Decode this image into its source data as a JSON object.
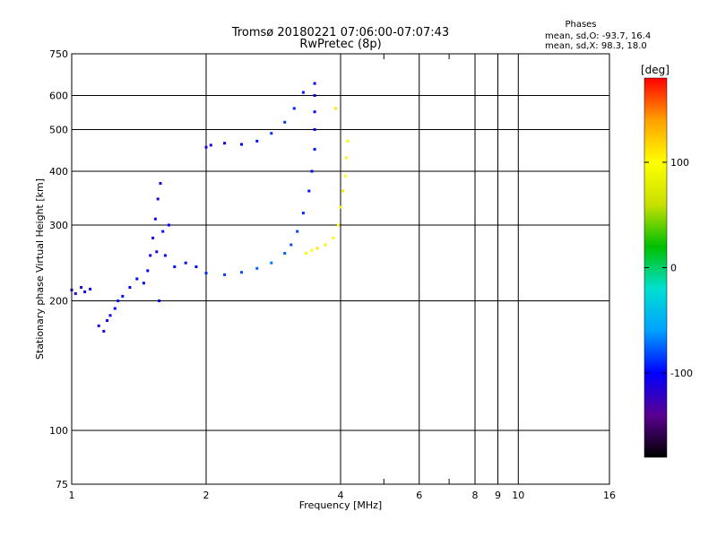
{
  "title": "Tromsø 20180221 07:06:00-07:07:43",
  "subtitle": "RwPretec (8p)",
  "stats": {
    "heading": "Phases",
    "line_o": "mean, sd,O: -93.7, 16.4",
    "line_x": "mean, sd,X:  98.3, 18.0"
  },
  "colorbar": {
    "unit_label": "[deg]",
    "min": -180,
    "max": 180,
    "ticks": [
      {
        "value": 100,
        "label": "100"
      },
      {
        "value": 0,
        "label": "0"
      },
      {
        "value": -100,
        "label": "-100"
      }
    ],
    "stops": [
      "#000000",
      "#5a0090",
      "#0000ff",
      "#00a0ff",
      "#00e0d0",
      "#00c000",
      "#c8e000",
      "#ffff00",
      "#ffa000",
      "#ff0000"
    ]
  },
  "chart_data": {
    "type": "scatter",
    "title": "Tromsø 20180221 07:06:00-07:07:43",
    "subtitle": "RwPretec (8p)",
    "xlabel": "Frequency [MHz]",
    "ylabel": "Stationary phase Virtual Height [km]",
    "xscale": "log",
    "yscale": "log",
    "xlim": [
      1,
      16
    ],
    "ylim": [
      75,
      750
    ],
    "xticks": [
      1,
      2,
      4,
      6,
      8,
      9,
      10,
      16
    ],
    "xtick_labels": [
      "1",
      "2",
      "4",
      "6",
      "8",
      "9",
      "10",
      "16"
    ],
    "x_minor": [
      5,
      7
    ],
    "yticks": [
      75,
      100,
      200,
      300,
      400,
      500,
      600,
      750
    ],
    "ytick_labels": [
      "75",
      "100",
      "200",
      "300",
      "400",
      "500",
      "600",
      "750"
    ],
    "grid": true,
    "color_dimension": "phase [deg]",
    "series": [
      {
        "name": "O",
        "points": [
          [
            1.0,
            212,
            -110
          ],
          [
            1.02,
            208,
            -112
          ],
          [
            1.05,
            215,
            -105
          ],
          [
            1.07,
            210,
            -108
          ],
          [
            1.1,
            213,
            -100
          ],
          [
            1.15,
            175,
            -115
          ],
          [
            1.18,
            170,
            -112
          ],
          [
            1.2,
            180,
            -110
          ],
          [
            1.22,
            185,
            -105
          ],
          [
            1.25,
            192,
            -100
          ],
          [
            1.27,
            200,
            -95
          ],
          [
            1.3,
            205,
            -98
          ],
          [
            1.35,
            215,
            -100
          ],
          [
            1.4,
            225,
            -105
          ],
          [
            1.45,
            220,
            -100
          ],
          [
            1.48,
            235,
            -102
          ],
          [
            1.5,
            255,
            -105
          ],
          [
            1.52,
            280,
            -110
          ],
          [
            1.54,
            310,
            -108
          ],
          [
            1.56,
            345,
            -112
          ],
          [
            1.58,
            375,
            -110
          ],
          [
            1.55,
            260,
            -105
          ],
          [
            1.57,
            200,
            -100
          ],
          [
            1.6,
            290,
            -98
          ],
          [
            1.62,
            255,
            -100
          ],
          [
            1.65,
            300,
            -102
          ],
          [
            1.7,
            240,
            -95
          ],
          [
            1.8,
            245,
            -100
          ],
          [
            1.9,
            240,
            -98
          ],
          [
            2.0,
            455,
            -110
          ],
          [
            2.05,
            460,
            -108
          ],
          [
            2.2,
            465,
            -105
          ],
          [
            2.4,
            462,
            -100
          ],
          [
            2.6,
            470,
            -95
          ],
          [
            2.8,
            490,
            -90
          ],
          [
            3.0,
            520,
            -85
          ],
          [
            3.15,
            560,
            -90
          ],
          [
            3.3,
            610,
            -95
          ],
          [
            2.0,
            232,
            -90
          ],
          [
            2.2,
            230,
            -85
          ],
          [
            2.4,
            233,
            -80
          ],
          [
            2.6,
            238,
            -75
          ],
          [
            2.8,
            245,
            -70
          ],
          [
            3.0,
            258,
            -75
          ],
          [
            3.1,
            270,
            -80
          ],
          [
            3.2,
            290,
            -85
          ],
          [
            3.3,
            320,
            -90
          ],
          [
            3.4,
            360,
            -95
          ],
          [
            3.45,
            400,
            -100
          ],
          [
            3.5,
            450,
            -95
          ],
          [
            3.5,
            500,
            -100
          ],
          [
            3.5,
            550,
            -98
          ],
          [
            3.5,
            600,
            -105
          ],
          [
            3.5,
            640,
            -100
          ]
        ]
      },
      {
        "name": "X",
        "points": [
          [
            3.35,
            258,
            95
          ],
          [
            3.45,
            262,
            100
          ],
          [
            3.55,
            265,
            110
          ],
          [
            3.7,
            270,
            105
          ],
          [
            3.85,
            280,
            100
          ],
          [
            3.95,
            300,
            98
          ],
          [
            4.0,
            330,
            105
          ],
          [
            4.05,
            360,
            110
          ],
          [
            4.1,
            390,
            100
          ],
          [
            4.12,
            430,
            95
          ],
          [
            4.15,
            470,
            98
          ],
          [
            3.9,
            560,
            110
          ]
        ]
      }
    ]
  }
}
